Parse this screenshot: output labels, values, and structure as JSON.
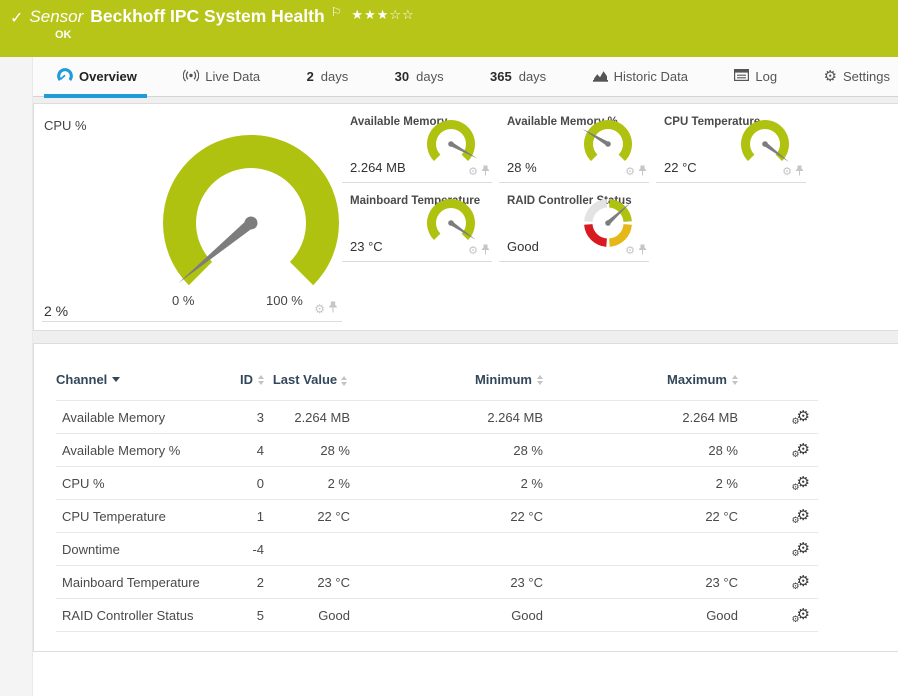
{
  "header": {
    "kind": "Sensor",
    "title": "Beckhoff IPC System Health",
    "status": "OK",
    "rating_filled": "★★★",
    "rating_empty": "☆☆"
  },
  "tabs": [
    {
      "label": "Overview"
    },
    {
      "label": "Live Data"
    },
    {
      "number": "2",
      "label": "days"
    },
    {
      "number": "30",
      "label": "days"
    },
    {
      "number": "365",
      "label": "days"
    },
    {
      "label": "Historic Data"
    },
    {
      "label": "Log"
    },
    {
      "label": "Settings"
    }
  ],
  "gauges": {
    "main": {
      "name": "CPU %",
      "value": "2 %",
      "scale_min": "0 %",
      "scale_max": "100 %",
      "fraction": 0.02
    },
    "minis": [
      {
        "name": "Available Memory",
        "value": "2.264 MB",
        "style": "arc",
        "fraction": 0.94
      },
      {
        "name": "Available Memory %",
        "value": "28 %",
        "style": "arc",
        "fraction": 0.28
      },
      {
        "name": "CPU Temperature",
        "value": "22 °C",
        "style": "arc",
        "fraction": 0.97
      },
      {
        "name": "Mainboard Temperature",
        "value": "23 °C",
        "style": "arc",
        "fraction": 0.96
      },
      {
        "name": "RAID Controller Status",
        "value": "Good",
        "style": "ring",
        "needle_deg": 318,
        "segments": [
          {
            "color": "#afc20f",
            "from": 274,
            "to": 356
          },
          {
            "color": "#e5b817",
            "from": 4,
            "to": 86
          },
          {
            "color": "#d71920",
            "from": 94,
            "to": 176
          },
          {
            "color": "#e3e3e3",
            "from": 184,
            "to": 266
          }
        ]
      }
    ]
  },
  "table": {
    "columns": [
      {
        "label": "Channel"
      },
      {
        "label": "ID"
      },
      {
        "label": "Last Value"
      },
      {
        "label": "Minimum"
      },
      {
        "label": "Maximum"
      }
    ],
    "rows": [
      {
        "channel": "Available Memory",
        "id": "3",
        "last": "2.264 MB",
        "min": "2.264 MB",
        "max": "2.264 MB"
      },
      {
        "channel": "Available Memory %",
        "id": "4",
        "last": "28 %",
        "min": "28 %",
        "max": "28 %"
      },
      {
        "channel": "CPU %",
        "id": "0",
        "last": "2 %",
        "min": "2 %",
        "max": "2 %"
      },
      {
        "channel": "CPU Temperature",
        "id": "1",
        "last": "22 °C",
        "min": "22 °C",
        "max": "22 °C"
      },
      {
        "channel": "Downtime",
        "id": "-4",
        "last": "",
        "min": "",
        "max": ""
      },
      {
        "channel": "Mainboard Temperature",
        "id": "2",
        "last": "23 °C",
        "min": "23 °C",
        "max": "23 °C"
      },
      {
        "channel": "RAID Controller Status",
        "id": "5",
        "last": "Good",
        "min": "Good",
        "max": "Good"
      }
    ]
  },
  "colors": {
    "header_green": "#b6c518",
    "accent_blue": "#1f9bd7",
    "gauge_green": "#afc20f",
    "needle_gray": "#7d7d7d",
    "status_yellow": "#e5b817",
    "status_red": "#d71920",
    "status_gray": "#e3e3e3"
  }
}
